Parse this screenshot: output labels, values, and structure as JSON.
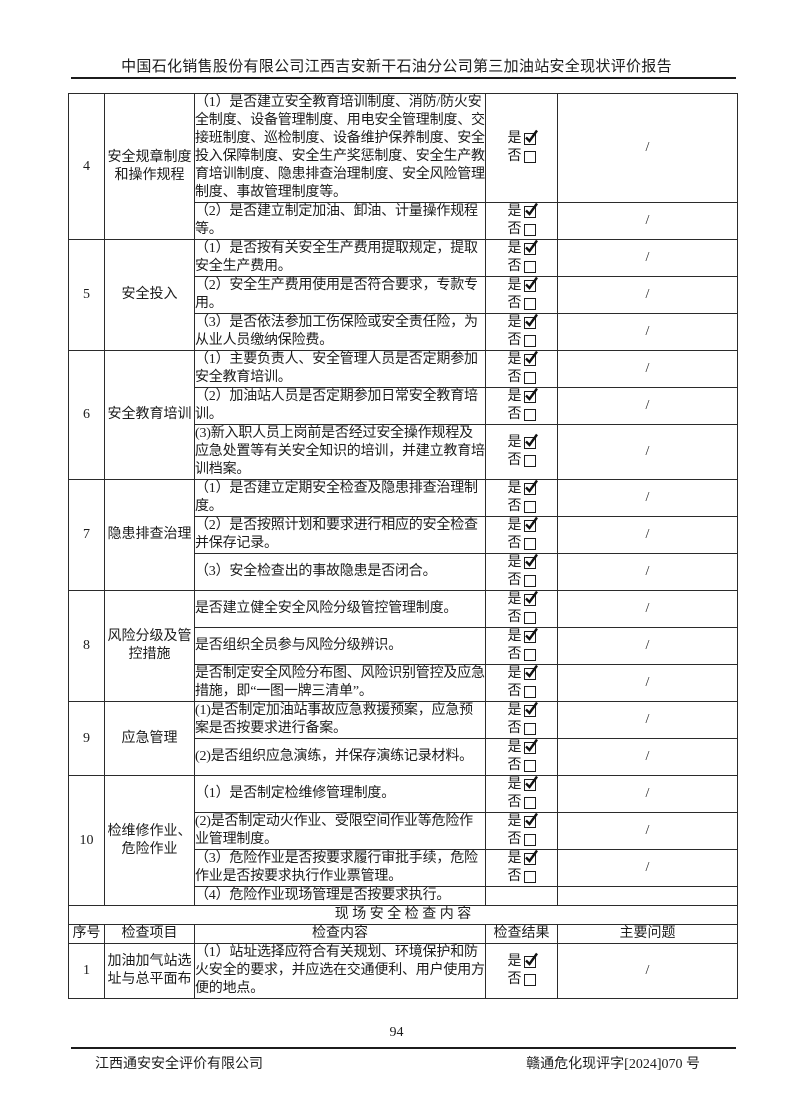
{
  "page": {
    "header_title": "中国石化销售股份有限公司江西吉安新干石油分公司第三加油站安全现状评价报告",
    "page_number": "94",
    "footer_left": "江西通安安全评价有限公司",
    "footer_right": "赣通危化现评字[2024]070 号"
  },
  "checkbox": {
    "yes_label": "是",
    "no_label": "否"
  },
  "table": {
    "groups": [
      {
        "no": "4",
        "item": "安全规章制度和操作规程",
        "rows": [
          {
            "content": "（1）是否建立安全教育培训制度、消防/防火安全制度、设备管理制度、用电安全管理制度、交接班制度、巡检制度、设备维护保养制度、安全投入保障制度、安全生产奖惩制度、安全生产教育培训制度、隐患排查治理制度、安全风险管理制度、事故管理制度等。",
            "result": "yes",
            "problem": "/"
          },
          {
            "content": "（2）是否建立制定加油、卸油、计量操作规程等。",
            "result": "yes",
            "problem": "/"
          }
        ]
      },
      {
        "no": "5",
        "item": "安全投入",
        "rows": [
          {
            "content": "（1）是否按有关安全生产费用提取规定，提取安全生产费用。",
            "result": "yes",
            "problem": "/"
          },
          {
            "content": "（2）安全生产费用使用是否符合要求，专款专用。",
            "result": "yes",
            "problem": "/"
          },
          {
            "content": "（3）是否依法参加工伤保险或安全责任险，为从业人员缴纳保险费。",
            "result": "yes",
            "problem": "/"
          }
        ]
      },
      {
        "no": "6",
        "item": "安全教育培训",
        "rows": [
          {
            "content": "（1）主要负责人、安全管理人员是否定期参加安全教育培训。",
            "result": "yes",
            "problem": "/"
          },
          {
            "content": "（2）加油站人员是否定期参加日常安全教育培训。",
            "result": "yes",
            "problem": "/"
          },
          {
            "content": "(3)新入职人员上岗前是否经过安全操作规程及应急处置等有关安全知识的培训，并建立教育培训档案。",
            "result": "yes",
            "problem": "/"
          }
        ]
      },
      {
        "no": "7",
        "item": "隐患排查治理",
        "rows": [
          {
            "content": "（1）是否建立定期安全检查及隐患排查治理制度。",
            "result": "yes",
            "problem": "/"
          },
          {
            "content": "（2）是否按照计划和要求进行相应的安全检查并保存记录。",
            "result": "yes",
            "problem": "/"
          },
          {
            "content": "（3）安全检查出的事故隐患是否闭合。",
            "result": "yes",
            "problem": "/"
          }
        ]
      },
      {
        "no": "8",
        "item": "风险分级及管控措施",
        "rows": [
          {
            "content": "是否建立健全安全风险分级管控管理制度。",
            "result": "yes",
            "problem": "/"
          },
          {
            "content": "是否组织全员参与风险分级辨识。",
            "result": "yes",
            "problem": "/"
          },
          {
            "content": "是否制定安全风险分布图、风险识别管控及应急措施，即“一图一牌三清单”。",
            "result": "yes",
            "problem": "/"
          }
        ]
      },
      {
        "no": "9",
        "item": "应急管理",
        "rows": [
          {
            "content": "(1)是否制定加油站事故应急救援预案，应急预案是否按要求进行备案。",
            "result": "yes",
            "problem": "/"
          },
          {
            "content": "(2)是否组织应急演练，并保存演练记录材料。",
            "result": "yes",
            "problem": "/"
          }
        ]
      },
      {
        "no": "10",
        "item": "检维修作业、危险作业",
        "rows": [
          {
            "content": "（1）是否制定检维修管理制度。",
            "result": "yes",
            "problem": "/"
          },
          {
            "content": "(2)是否制定动火作业、受限空间作业等危险作业管理制度。",
            "result": "yes",
            "problem": "/"
          },
          {
            "content": "（3）危险作业是否按要求履行审批手续，危险作业是否按要求执行作业票管理。",
            "result": "yes",
            "problem": "/"
          },
          {
            "content": "（4）危险作业现场管理是否按要求执行。",
            "result": "none",
            "problem": ""
          }
        ]
      }
    ],
    "section_header": "现 场 安 全 检 查 内 容",
    "columns": {
      "no": "序号",
      "item": "检查项目",
      "content": "检查内容",
      "result": "检查结果",
      "problem": "主要问题"
    },
    "groups2": [
      {
        "no": "1",
        "item": "加油加气站选址与总平面布",
        "rows": [
          {
            "content": "（1）站址选择应符合有关规划、环境保护和防火安全的要求，并应选在交通便利、用户使用方便的地点。",
            "result": "yes",
            "problem": "/"
          }
        ]
      }
    ]
  }
}
